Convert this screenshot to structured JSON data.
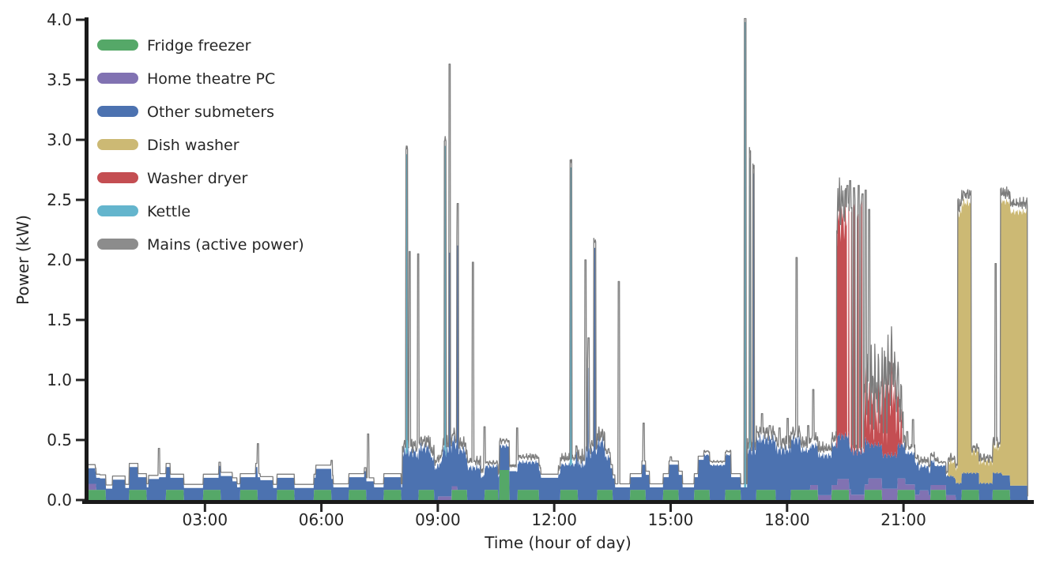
{
  "chart_data": {
    "type": "area",
    "subtype": "stacked-appliance-power-disaggregation",
    "xlabel": "Time (hour of day)",
    "ylabel": "Power (kW)",
    "ylim": [
      0.0,
      4.0
    ],
    "xlim_hours": [
      0,
      24.2
    ],
    "grid": false,
    "legend_position": "upper-left",
    "axis_color": "#262626",
    "background": "#ffffff",
    "yticks": [
      {
        "value": 0.0,
        "label": "0.0"
      },
      {
        "value": 0.5,
        "label": "0.5"
      },
      {
        "value": 1.0,
        "label": "1.0"
      },
      {
        "value": 1.5,
        "label": "1.5"
      },
      {
        "value": 2.0,
        "label": "2.0"
      },
      {
        "value": 2.5,
        "label": "2.5"
      },
      {
        "value": 3.0,
        "label": "3.0"
      },
      {
        "value": 3.5,
        "label": "3.5"
      },
      {
        "value": 4.0,
        "label": "4.0"
      }
    ],
    "xticks": [
      {
        "hour": 3,
        "label": "03:00"
      },
      {
        "hour": 6,
        "label": "06:00"
      },
      {
        "hour": 9,
        "label": "09:00"
      },
      {
        "hour": 12,
        "label": "12:00"
      },
      {
        "hour": 15,
        "label": "15:00"
      },
      {
        "hour": 18,
        "label": "18:00"
      },
      {
        "hour": 21,
        "label": "21:00"
      }
    ],
    "series": [
      {
        "name": "Fridge freezer",
        "color": "#55a868",
        "segments": [
          [
            0.0,
            0.45,
            0.085
          ],
          [
            1.05,
            1.5,
            0.085
          ],
          [
            2.0,
            2.45,
            0.085
          ],
          [
            2.95,
            3.4,
            0.085
          ],
          [
            3.9,
            4.35,
            0.085
          ],
          [
            4.85,
            5.3,
            0.085
          ],
          [
            5.8,
            6.25,
            0.085
          ],
          [
            6.7,
            7.15,
            0.085
          ],
          [
            7.6,
            8.05,
            0.085
          ],
          [
            8.5,
            8.9,
            0.085
          ],
          [
            9.35,
            9.75,
            0.085
          ],
          [
            10.2,
            10.55,
            0.085
          ],
          [
            10.58,
            10.84,
            0.25
          ],
          [
            11.05,
            11.6,
            0.085
          ],
          [
            12.15,
            12.6,
            0.085
          ],
          [
            13.1,
            13.5,
            0.085
          ],
          [
            13.95,
            14.35,
            0.085
          ],
          [
            14.8,
            15.2,
            0.085
          ],
          [
            15.6,
            16.0,
            0.085
          ],
          [
            16.4,
            16.8,
            0.085
          ],
          [
            17.2,
            17.7,
            0.085
          ],
          [
            18.1,
            18.8,
            0.085
          ],
          [
            19.15,
            19.6,
            0.085
          ],
          [
            20.0,
            20.45,
            0.085
          ],
          [
            20.85,
            21.3,
            0.085
          ],
          [
            21.7,
            22.1,
            0.085
          ],
          [
            22.5,
            22.95,
            0.085
          ],
          [
            23.3,
            23.75,
            0.085
          ]
        ]
      },
      {
        "name": "Home theatre PC",
        "color": "#8172b2",
        "segments": [
          [
            0.0,
            0.2,
            0.05
          ],
          [
            9.0,
            9.5,
            0.03
          ],
          [
            18.6,
            19.3,
            0.04
          ],
          [
            19.3,
            19.65,
            0.09
          ],
          [
            19.65,
            20.1,
            0.045
          ],
          [
            20.1,
            21.05,
            0.095
          ],
          [
            21.05,
            21.42,
            0.045
          ],
          [
            21.42,
            21.65,
            0.08
          ],
          [
            21.65,
            22.35,
            0.04
          ]
        ]
      },
      {
        "name": "Other submeters",
        "color": "#4c72b0",
        "segments": [
          [
            0.0,
            0.18,
            0.13,
            0
          ],
          [
            0.18,
            0.3,
            0.1,
            0
          ],
          [
            0.3,
            0.62,
            0.095,
            0
          ],
          [
            0.62,
            0.95,
            0.17,
            0
          ],
          [
            0.95,
            1.05,
            0.1,
            0
          ],
          [
            1.05,
            1.28,
            0.19,
            0
          ],
          [
            1.28,
            1.55,
            0.105,
            0
          ],
          [
            1.55,
            1.82,
            0.175,
            0
          ],
          [
            1.82,
            2.1,
            0.19,
            0
          ],
          [
            2.1,
            3.35,
            0.1,
            0
          ],
          [
            3.35,
            3.7,
            0.2,
            0
          ],
          [
            3.7,
            3.82,
            0.155,
            0
          ],
          [
            3.82,
            4.3,
            0.105,
            0
          ],
          [
            4.3,
            4.42,
            0.19,
            0
          ],
          [
            4.42,
            4.75,
            0.165,
            0
          ],
          [
            4.75,
            5.85,
            0.1,
            0
          ],
          [
            5.85,
            6.3,
            0.175,
            0
          ],
          [
            6.3,
            7.1,
            0.105,
            0
          ],
          [
            7.1,
            7.35,
            0.155,
            0
          ],
          [
            7.35,
            8.08,
            0.105,
            0
          ],
          [
            8.08,
            8.45,
            0.4,
            0.05
          ],
          [
            8.45,
            8.8,
            0.35,
            0.05
          ],
          [
            8.8,
            9.1,
            0.27,
            0.04
          ],
          [
            9.1,
            9.45,
            0.38,
            0.06
          ],
          [
            9.45,
            9.72,
            0.33,
            0.04
          ],
          [
            9.72,
            10.1,
            0.27,
            0.03
          ],
          [
            10.1,
            10.58,
            0.195,
            0.02
          ],
          [
            10.58,
            10.84,
            0.2,
            0.02
          ],
          [
            10.84,
            11.02,
            0.24,
            0
          ],
          [
            11.02,
            11.65,
            0.23,
            0.02
          ],
          [
            11.65,
            12.1,
            0.185,
            0
          ],
          [
            12.1,
            12.55,
            0.21,
            0.02
          ],
          [
            12.55,
            12.8,
            0.3,
            0.05
          ],
          [
            12.8,
            13.3,
            0.4,
            0.06
          ],
          [
            13.3,
            13.44,
            0.27,
            0.03
          ],
          [
            13.44,
            13.56,
            0.18,
            0
          ],
          [
            13.56,
            14.25,
            0.105,
            0
          ],
          [
            14.25,
            14.45,
            0.21,
            0
          ],
          [
            14.45,
            14.95,
            0.105,
            0
          ],
          [
            14.95,
            15.3,
            0.21,
            0
          ],
          [
            15.3,
            15.7,
            0.105,
            0
          ],
          [
            15.7,
            15.85,
            0.25,
            0
          ],
          [
            15.85,
            16.55,
            0.29,
            0.01
          ],
          [
            16.55,
            16.97,
            0.105,
            0
          ],
          [
            16.97,
            18.35,
            0.42,
            0.05
          ],
          [
            18.35,
            19.3,
            0.33,
            0.03
          ],
          [
            19.3,
            20.1,
            0.36,
            0.04
          ],
          [
            20.1,
            21.05,
            0.28,
            0.03
          ],
          [
            21.05,
            21.4,
            0.26,
            0.02
          ],
          [
            21.4,
            21.8,
            0.2,
            0.02
          ],
          [
            21.8,
            22.3,
            0.16,
            0.01
          ],
          [
            22.3,
            23.55,
            0.14,
            0.01
          ],
          [
            23.55,
            24.2,
            0.12,
            0
          ]
        ],
        "spikes": [
          [
            9.3,
            0.04,
            2.06
          ],
          [
            9.51,
            0.05,
            2.12
          ],
          [
            12.87,
            0.03,
            1.1
          ],
          [
            13.04,
            0.05,
            2.1
          ],
          [
            17.13,
            0.04,
            2.72
          ]
        ]
      },
      {
        "name": "Dish washer",
        "color": "#ccb974",
        "segments": [
          [
            22.15,
            22.4,
            0.12,
            0.03
          ],
          [
            22.4,
            22.75,
            2.25,
            0.03
          ],
          [
            22.75,
            23.3,
            0.18,
            0.03
          ],
          [
            23.3,
            23.5,
            0.22,
            0.04
          ],
          [
            23.5,
            24.2,
            2.28,
            0.03
          ]
        ]
      },
      {
        "name": "Washer dryer",
        "color": "#c44e52",
        "segments": [
          [
            19.28,
            19.55,
            1.8,
            0.15
          ],
          [
            19.58,
            19.61,
            1.9,
            0
          ],
          [
            19.65,
            19.68,
            2.0,
            0
          ],
          [
            19.72,
            19.76,
            2.05,
            0
          ],
          [
            19.81,
            19.85,
            1.95,
            0
          ],
          [
            19.9,
            19.94,
            2.05,
            0
          ],
          [
            19.98,
            20.2,
            0.35,
            0.25
          ],
          [
            20.2,
            20.45,
            0.3,
            0.3
          ],
          [
            20.45,
            20.62,
            0.45,
            0.35
          ],
          [
            20.62,
            20.78,
            0.55,
            0.3
          ],
          [
            20.78,
            20.88,
            0.4,
            0.25
          ],
          [
            20.88,
            20.97,
            0.2,
            0.15
          ]
        ]
      },
      {
        "name": "Kettle",
        "color": "#64b5cd",
        "segments": [],
        "spikes": [
          [
            8.2,
            0.05,
            2.88
          ],
          [
            9.19,
            0.05,
            2.95
          ],
          [
            12.43,
            0.05,
            2.77
          ],
          [
            16.92,
            0.05,
            3.98
          ],
          [
            17.04,
            0.04,
            2.85
          ]
        ]
      }
    ],
    "mains": {
      "name": "Mains (active power)",
      "color": "#7c7c7c",
      "offset": 0.03,
      "noise_regions": [
        [
          8.08,
          10.2,
          0.05
        ],
        [
          10.58,
          11.65,
          0.03
        ],
        [
          12.1,
          13.45,
          0.05
        ],
        [
          16.97,
          19.28,
          0.06
        ],
        [
          19.28,
          19.55,
          0.2
        ],
        [
          19.98,
          21.0,
          0.3
        ],
        [
          21.0,
          21.9,
          0.04
        ],
        [
          22.4,
          22.75,
          0.08
        ],
        [
          23.5,
          24.2,
          0.08
        ]
      ],
      "spikes": [
        [
          1.82,
          0.43
        ],
        [
          4.36,
          0.47
        ],
        [
          6.26,
          0.33
        ],
        [
          7.2,
          0.55
        ],
        [
          8.27,
          2.07
        ],
        [
          8.49,
          2.05
        ],
        [
          9.3,
          3.63
        ],
        [
          9.51,
          2.47
        ],
        [
          9.9,
          1.98
        ],
        [
          10.2,
          0.61
        ],
        [
          11.04,
          0.6
        ],
        [
          12.8,
          2.0
        ],
        [
          12.88,
          1.35
        ],
        [
          13.05,
          2.15
        ],
        [
          13.66,
          1.82
        ],
        [
          14.3,
          0.64
        ],
        [
          15.0,
          0.36
        ],
        [
          17.35,
          0.72
        ],
        [
          17.55,
          0.62
        ],
        [
          17.8,
          0.6
        ],
        [
          18.02,
          0.68
        ],
        [
          18.25,
          2.02
        ],
        [
          18.55,
          0.62
        ],
        [
          18.68,
          0.92
        ],
        [
          19.56,
          2.62
        ],
        [
          19.63,
          2.66
        ],
        [
          19.73,
          2.6
        ],
        [
          19.85,
          2.62
        ],
        [
          19.95,
          2.55
        ],
        [
          20.03,
          2.58
        ],
        [
          20.12,
          2.42
        ],
        [
          20.7,
          1.08
        ],
        [
          21.1,
          0.57
        ],
        [
          21.25,
          0.67
        ],
        [
          21.75,
          0.3
        ],
        [
          23.38,
          1.97
        ]
      ]
    }
  }
}
